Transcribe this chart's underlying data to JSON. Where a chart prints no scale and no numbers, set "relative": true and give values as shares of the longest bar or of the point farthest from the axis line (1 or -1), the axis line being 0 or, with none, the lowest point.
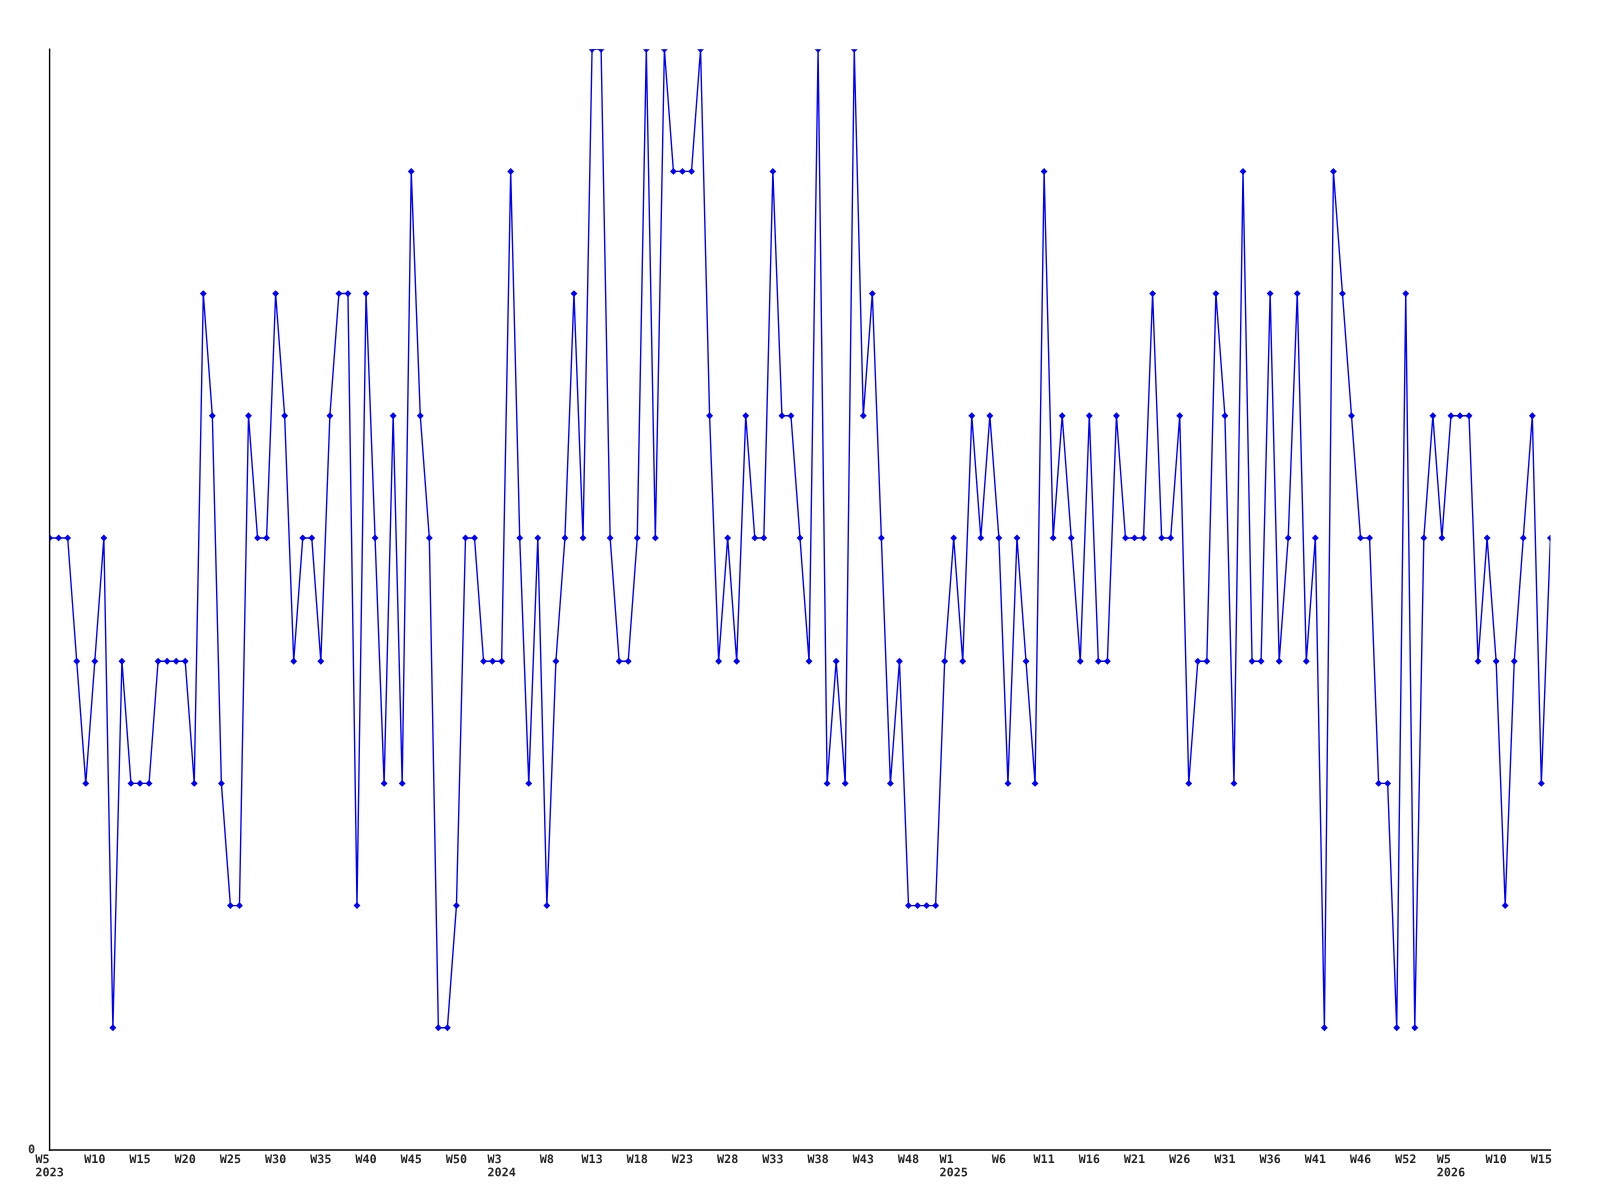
{
  "chart_data": {
    "type": "line",
    "relative": true,
    "marker": "diamond",
    "line_style": "solid",
    "grid": false,
    "categories": [
      "W5\n2023",
      null,
      null,
      null,
      null,
      "W10",
      null,
      null,
      null,
      null,
      "W15",
      null,
      null,
      null,
      null,
      "W20",
      null,
      null,
      null,
      null,
      "W25",
      null,
      null,
      null,
      null,
      "W30",
      null,
      null,
      null,
      null,
      "W35",
      null,
      null,
      null,
      null,
      "W40",
      null,
      null,
      null,
      null,
      "W45",
      null,
      null,
      null,
      null,
      "W50",
      null,
      null,
      null,
      null,
      "W3\n2024",
      null,
      null,
      null,
      null,
      "W8",
      null,
      null,
      null,
      null,
      "W13",
      null,
      null,
      null,
      null,
      "W18",
      null,
      null,
      null,
      null,
      "W23",
      null,
      null,
      null,
      null,
      "W28",
      null,
      null,
      null,
      null,
      "W33",
      null,
      null,
      null,
      null,
      "W38",
      null,
      null,
      null,
      null,
      "W43",
      null,
      null,
      null,
      null,
      "W48",
      null,
      null,
      null,
      null,
      "W1\n2025",
      null,
      null,
      null,
      null,
      "W6",
      null,
      null,
      null,
      null,
      "W11",
      null,
      null,
      null,
      null,
      "W16",
      null,
      null,
      null,
      null,
      "W21",
      null,
      null,
      null,
      null,
      "W26",
      null,
      null,
      null,
      null,
      "W31",
      null,
      null,
      null,
      null,
      "W36",
      null,
      null,
      null,
      null,
      "W41",
      null,
      null,
      null,
      null,
      "W46",
      null,
      null,
      null,
      null,
      "W52",
      null,
      null,
      null,
      null,
      "W5\n2026",
      null,
      null,
      null,
      null,
      "W10",
      null,
      null,
      null,
      null,
      "W15",
      null
    ],
    "series": [
      {
        "color": "#0000ff",
        "values": [
          0.556,
          0.556,
          0.556,
          0.444,
          0.333,
          0.444,
          0.556,
          0.111,
          0.444,
          0.333,
          0.333,
          0.333,
          0.444,
          0.444,
          0.444,
          0.444,
          0.333,
          0.778,
          0.667,
          0.333,
          0.222,
          0.222,
          0.667,
          0.556,
          0.556,
          0.778,
          0.667,
          0.444,
          0.556,
          0.556,
          0.444,
          0.667,
          0.778,
          0.778,
          0.222,
          0.778,
          0.556,
          0.333,
          0.667,
          0.333,
          0.889,
          0.667,
          0.556,
          0.111,
          0.111,
          0.222,
          0.556,
          0.556,
          0.444,
          0.444,
          0.444,
          0.889,
          0.556,
          0.333,
          0.556,
          0.222,
          0.444,
          0.556,
          0.778,
          0.556,
          1,
          1,
          0.556,
          0.444,
          0.444,
          0.556,
          1,
          0.556,
          1,
          0.889,
          0.889,
          0.889,
          1,
          0.667,
          0.444,
          0.556,
          0.444,
          0.667,
          0.556,
          0.556,
          0.889,
          0.667,
          0.667,
          0.556,
          0.444,
          1,
          0.333,
          0.444,
          0.333,
          1,
          0.667,
          0.778,
          0.556,
          0.333,
          0.444,
          0.222,
          0.222,
          0.222,
          0.222,
          0.444,
          0.556,
          0.444,
          0.667,
          0.556,
          0.667,
          0.556,
          0.333,
          0.556,
          0.444,
          0.333,
          0.889,
          0.556,
          0.667,
          0.556,
          0.444,
          0.667,
          0.444,
          0.444,
          0.667,
          0.556,
          0.556,
          0.556,
          0.778,
          0.556,
          0.556,
          0.667,
          0.333,
          0.444,
          0.444,
          0.778,
          0.667,
          0.333,
          0.889,
          0.444,
          0.444,
          0.778,
          0.444,
          0.556,
          0.778,
          0.444,
          0.556,
          0.111,
          0.889,
          0.778,
          0.667,
          0.556,
          0.556,
          0.333,
          0.333,
          0.111,
          0.778,
          0.111,
          0.556,
          0.667,
          0.556,
          0.667,
          0.667,
          0.667,
          0.444,
          0.556,
          0.444,
          0.222,
          0.444,
          0.556,
          0.667,
          0.333,
          0.556
        ]
      }
    ],
    "annotations": [
      "0"
    ]
  }
}
